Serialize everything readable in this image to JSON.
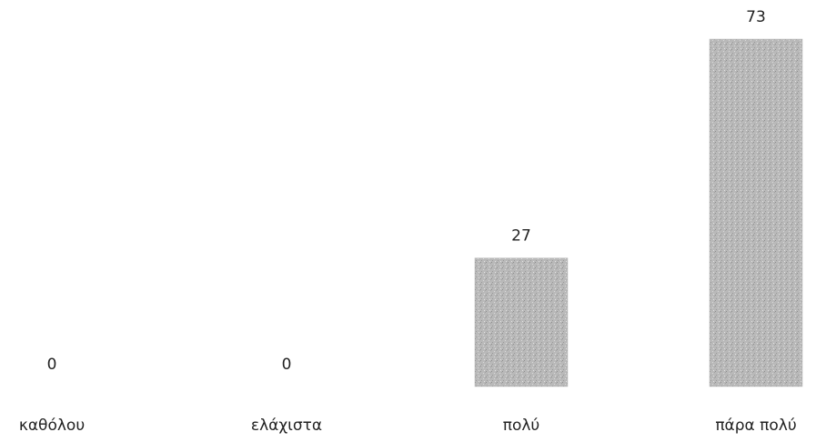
{
  "chart_data": {
    "type": "bar",
    "categories": [
      "καθόλου",
      "ελάχιστα",
      "πολύ",
      "πάρα πολύ"
    ],
    "values": [
      0,
      0,
      27,
      73
    ],
    "color": "#b9b9b9"
  }
}
